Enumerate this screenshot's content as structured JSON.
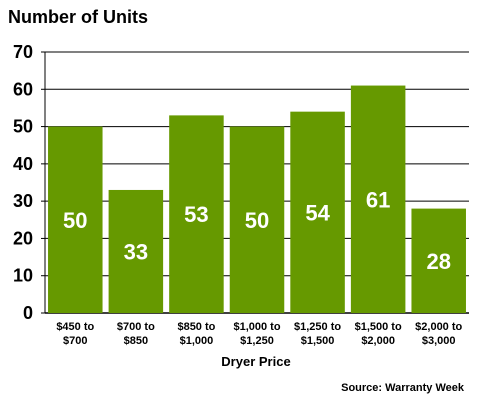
{
  "chart_data": {
    "type": "bar",
    "title": "Number of Units",
    "xlabel": "Dryer Price",
    "ylabel": "",
    "ylim": [
      0,
      70
    ],
    "yticks": [
      0,
      10,
      20,
      30,
      40,
      50,
      60,
      70
    ],
    "grid": true,
    "categories": [
      [
        "$450 to",
        "$700"
      ],
      [
        "$700 to",
        "$850"
      ],
      [
        "$850 to",
        "$1,000"
      ],
      [
        "$1,000 to",
        "$1,250"
      ],
      [
        "$1,250 to",
        "$1,500"
      ],
      [
        "$1,500 to",
        "$2,000"
      ],
      [
        "$2,000 to",
        "$3,000"
      ]
    ],
    "values": [
      50,
      33,
      53,
      50,
      54,
      61,
      28
    ],
    "data_labels": [
      "50",
      "33",
      "53",
      "50",
      "54",
      "61",
      "28"
    ],
    "bar_color": "#669900",
    "source": "Source: Warranty Week"
  }
}
